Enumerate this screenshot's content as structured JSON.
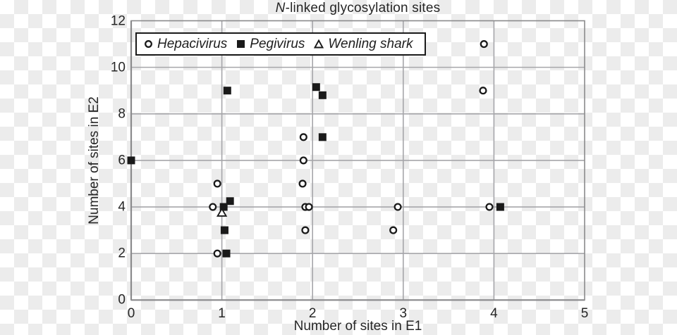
{
  "chart_data": {
    "type": "scatter",
    "title_italic": "N",
    "title_rest": "-linked glycosylation sites",
    "xlabel": "Number of sites in E1",
    "ylabel": "Number of sites in E2",
    "xlim": [
      0,
      5
    ],
    "ylim": [
      0,
      12
    ],
    "x_ticks": [
      0,
      1,
      2,
      3,
      4,
      5
    ],
    "y_ticks": [
      0,
      2,
      4,
      6,
      8,
      10,
      12
    ],
    "grid": true,
    "legend_position": "top-inside",
    "series": [
      {
        "name": "Hepacivirus",
        "marker": "open-circle",
        "points": [
          [
            0.95,
            5
          ],
          [
            0.9,
            4
          ],
          [
            0.95,
            2
          ],
          [
            1.9,
            7
          ],
          [
            1.9,
            6
          ],
          [
            1.89,
            5
          ],
          [
            1.92,
            4
          ],
          [
            1.96,
            4
          ],
          [
            1.92,
            3
          ],
          [
            2.94,
            4
          ],
          [
            2.89,
            3
          ],
          [
            3.89,
            11
          ],
          [
            3.88,
            9
          ],
          [
            3.95,
            4
          ]
        ]
      },
      {
        "name": "Pegivirus",
        "marker": "filled-square",
        "points": [
          [
            0,
            6
          ],
          [
            1.06,
            9
          ],
          [
            1.02,
            4
          ],
          [
            1.09,
            4.25
          ],
          [
            1.03,
            3
          ],
          [
            1.05,
            2
          ],
          [
            2.04,
            9.15
          ],
          [
            2.11,
            8.8
          ],
          [
            2.11,
            7
          ],
          [
            4.07,
            4
          ]
        ]
      },
      {
        "name": "Wenling shark",
        "marker": "open-triangle",
        "points": [
          [
            1.0,
            3.75
          ]
        ]
      }
    ],
    "colors": {
      "marker": "#1a1a1a",
      "grid": "#a6a6aa",
      "axis": "#8a8a8c",
      "text": "#262626",
      "legend_border": "#1a1a1a",
      "legend_bg": "#ffffff",
      "checker_gray": "#ececec"
    }
  }
}
